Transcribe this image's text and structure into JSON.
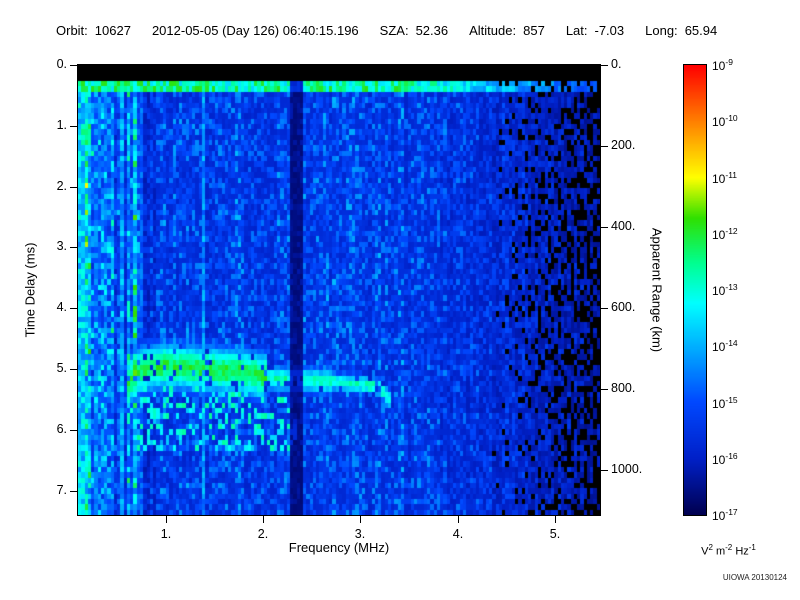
{
  "header": {
    "fields": [
      {
        "label": "Orbit:",
        "value": "10627"
      },
      {
        "label": "",
        "value": "2012-05-05 (Day 126) 06:40:15.196"
      },
      {
        "label": "SZA:",
        "value": "52.36"
      },
      {
        "label": "Altitude:",
        "value": "857"
      },
      {
        "label": "Lat:",
        "value": "-7.03"
      },
      {
        "label": "Long:",
        "value": "65.94"
      }
    ]
  },
  "footer": {
    "credit": "UIOWA 20130124"
  },
  "colors": {
    "background": "#ffffff",
    "text": "#000000",
    "frame": "#000000"
  },
  "chart_data": {
    "type": "heatmap",
    "description": "Radar sounder ionogram: received spectral density (V^2 m^-2 Hz^-1, log color scale 1e-17 to 1e-9) versus sounding frequency and echo time delay. Features: black band at 0-0.24 ms, bright transmit pulse line near 0.3 ms, strong striped low-frequency region below 0.9 MHz, bright vertical lines (plasma harmonics) near 0.13-0.55 and 1.4 MHz, dark vertical band near 2.34 MHz, ionospheric echo trace from about 0.6 to 3.3 MHz near 5-5.6 ms delay with diffuse scatter below, and weak signal with black dropouts above 4.3 MHz.",
    "x": {
      "label": "Frequency (MHz)",
      "min": 0.1,
      "max": 5.46,
      "ticks": [
        1,
        2,
        3,
        4,
        5
      ],
      "tick_labels": [
        "1.",
        "2.",
        "3.",
        "4.",
        "5."
      ]
    },
    "y_left": {
      "label": "Time Delay (ms)",
      "min": 0,
      "max": 7.4,
      "ticks": [
        0,
        1,
        2,
        3,
        4,
        5,
        6,
        7
      ],
      "tick_labels": [
        "0.",
        "1.",
        "2.",
        "3.",
        "4.",
        "5.",
        "6.",
        "7."
      ]
    },
    "y_right": {
      "label": "Apparent Range (km)",
      "km_per_ms": 150,
      "ticks": [
        0,
        200,
        400,
        600,
        800,
        1000
      ],
      "tick_labels": [
        "0.",
        "200.",
        "400.",
        "600.",
        "800.",
        "1000."
      ]
    },
    "colorbar": {
      "scale": "log",
      "tick_base": "10",
      "tick_exponents": [
        "-9",
        "-10",
        "-11",
        "-12",
        "-13",
        "-14",
        "-15",
        "-16",
        "-17"
      ],
      "unit_parts": [
        {
          "base": "V",
          "exp": "2"
        },
        {
          "base": "m",
          "exp": "-2"
        },
        {
          "base": "Hz",
          "exp": "-1"
        }
      ]
    },
    "colormap_stops": [
      [
        0.0,
        "#000050"
      ],
      [
        0.125,
        "#0020c8"
      ],
      [
        0.25,
        "#0048ff"
      ],
      [
        0.375,
        "#00b0ff"
      ],
      [
        0.47,
        "#00ffff"
      ],
      [
        0.56,
        "#00ff90"
      ],
      [
        0.66,
        "#30e000"
      ],
      [
        0.75,
        "#ffff00"
      ],
      [
        0.875,
        "#ff8000"
      ],
      [
        1.0,
        "#ff0000"
      ]
    ],
    "features": {
      "grid": [
        160,
        84
      ],
      "seed": 1337,
      "top_black_ms": 0.24,
      "tx_pulse": {
        "t0": 0.26,
        "t1": 0.44,
        "amp": 0.52
      },
      "left_region": {
        "f_max": 0.9,
        "boost": 0.32
      },
      "right_region": {
        "f_start": 3.5,
        "dim": 0.55,
        "black_start": 4.3,
        "black_fraction": 0.5
      },
      "bright_lines": [
        {
          "f": 0.135,
          "w": 0.025,
          "amp": 0.4
        },
        {
          "f": 0.2,
          "w": 0.018,
          "amp": 0.34
        },
        {
          "f": 0.275,
          "w": 0.016,
          "amp": 0.3
        },
        {
          "f": 0.38,
          "w": 0.016,
          "amp": 0.28
        },
        {
          "f": 0.55,
          "w": 0.02,
          "amp": 0.34
        },
        {
          "f": 0.74,
          "w": 0.016,
          "amp": 0.26
        },
        {
          "f": 1.4,
          "w": 0.02,
          "amp": 0.32
        }
      ],
      "dark_bands": [
        {
          "f": 0.165,
          "w": 0.012,
          "mult": 0.3
        },
        {
          "f": 0.335,
          "w": 0.01,
          "mult": 0.35
        },
        {
          "f": 0.47,
          "w": 0.01,
          "mult": 0.4
        },
        {
          "f": 2.34,
          "w": 0.075,
          "mult": 0.3
        }
      ],
      "trace_points": [
        [
          0.6,
          5.25
        ],
        [
          0.75,
          5.0
        ],
        [
          1.0,
          4.95
        ],
        [
          1.4,
          5.0
        ],
        [
          1.8,
          5.05
        ],
        [
          2.1,
          5.15
        ],
        [
          2.6,
          5.2
        ],
        [
          3.0,
          5.25
        ],
        [
          3.2,
          5.3
        ],
        [
          3.32,
          5.55
        ]
      ],
      "trace": {
        "amp_low": 0.56,
        "amp_high": 0.48,
        "thick_low": 0.45,
        "thick_mid": 0.25,
        "thick_high": 0.18,
        "f_split1": 2.05,
        "f_split2": 2.7
      },
      "scatter_below": {
        "f_min": 0.65,
        "f_max": 2.35,
        "t_max": 6.35,
        "density": 0.28,
        "amp": 0.4
      },
      "plasma_blob": {
        "f_min": 0.12,
        "f_max": 0.22,
        "t_min": 0.95,
        "t_max": 1.35,
        "amp": 0.5
      }
    }
  }
}
